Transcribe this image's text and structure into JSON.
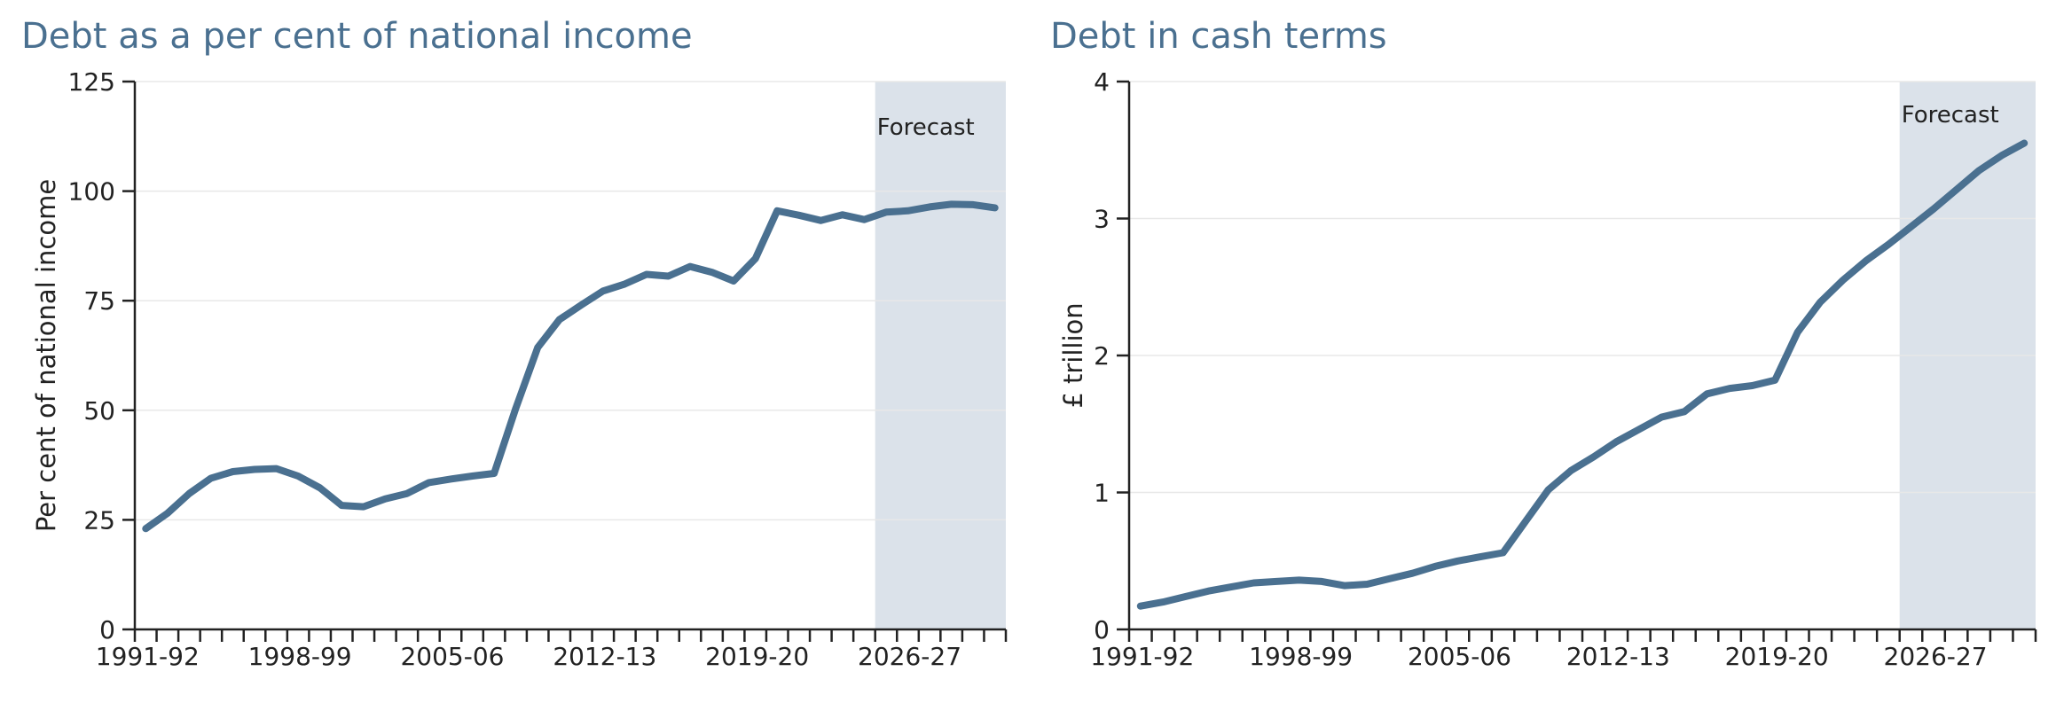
{
  "colors": {
    "series": "#4a7090",
    "title": "#4a7090",
    "forecast_shade": "#dbe2ea",
    "axis": "#222222",
    "grid": "#e8e8e8"
  },
  "chart_data": [
    {
      "type": "line",
      "title": "Debt as a per cent of national income",
      "xlabel": "",
      "ylabel": "Per cent of national income",
      "ylim": [
        0,
        125
      ],
      "yticks": [
        0,
        25,
        50,
        75,
        100,
        125
      ],
      "xticklabels": [
        "1991-92",
        "1998-99",
        "2005-06",
        "2012-13",
        "2019-20",
        "2026-27"
      ],
      "xlabel_every": 7,
      "grid": true,
      "forecast_label": "Forecast",
      "forecast_start": "2025-26",
      "categories": [
        "1991-92",
        "1992-93",
        "1993-94",
        "1994-95",
        "1995-96",
        "1996-97",
        "1997-98",
        "1998-99",
        "1999-00",
        "2000-01",
        "2001-02",
        "2002-03",
        "2003-04",
        "2004-05",
        "2005-06",
        "2006-07",
        "2007-08",
        "2008-09",
        "2009-10",
        "2010-11",
        "2011-12",
        "2012-13",
        "2013-14",
        "2014-15",
        "2015-16",
        "2016-17",
        "2017-18",
        "2018-19",
        "2019-20",
        "2020-21",
        "2021-22",
        "2022-23",
        "2023-24",
        "2024-25",
        "2025-26",
        "2026-27",
        "2027-28",
        "2028-29",
        "2029-30",
        "2030-31"
      ],
      "series": [
        {
          "values": [
            23.0,
            26.5,
            31.0,
            34.5,
            36.0,
            36.5,
            36.7,
            35.0,
            32.3,
            28.3,
            28.0,
            29.8,
            31.0,
            33.5,
            34.3,
            35.0,
            35.6,
            50.5,
            64.3,
            70.7,
            74.0,
            77.2,
            78.8,
            81.0,
            80.6,
            82.8,
            81.5,
            79.5,
            84.6,
            95.5,
            94.5,
            93.3,
            94.6,
            93.5,
            95.2,
            95.5,
            96.4,
            97.0,
            96.9,
            96.2
          ]
        }
      ]
    },
    {
      "type": "line",
      "title": "Debt in cash terms",
      "xlabel": "",
      "ylabel": "£ trillion",
      "ylim": [
        0,
        4
      ],
      "yticks": [
        0,
        1,
        2,
        3,
        4
      ],
      "xticklabels": [
        "1991-92",
        "1998-99",
        "2005-06",
        "2012-13",
        "2019-20",
        "2026-27"
      ],
      "xlabel_every": 7,
      "grid": true,
      "forecast_label": "Forecast",
      "forecast_start": "2025-26",
      "categories": [
        "1991-92",
        "1992-93",
        "1993-94",
        "1994-95",
        "1995-96",
        "1996-97",
        "1997-98",
        "1998-99",
        "1999-00",
        "2000-01",
        "2001-02",
        "2002-03",
        "2003-04",
        "2004-05",
        "2005-06",
        "2006-07",
        "2007-08",
        "2008-09",
        "2009-10",
        "2010-11",
        "2011-12",
        "2012-13",
        "2013-14",
        "2014-15",
        "2015-16",
        "2016-17",
        "2017-18",
        "2018-19",
        "2019-20",
        "2020-21",
        "2021-22",
        "2022-23",
        "2023-24",
        "2024-25",
        "2025-26",
        "2026-27",
        "2027-28",
        "2028-29",
        "2029-30",
        "2030-31"
      ],
      "series": [
        {
          "values": [
            0.17,
            0.2,
            0.24,
            0.28,
            0.31,
            0.34,
            0.35,
            0.36,
            0.35,
            0.32,
            0.33,
            0.37,
            0.41,
            0.46,
            0.5,
            0.53,
            0.56,
            0.79,
            1.02,
            1.16,
            1.26,
            1.37,
            1.46,
            1.55,
            1.59,
            1.72,
            1.76,
            1.78,
            1.82,
            2.17,
            2.39,
            2.55,
            2.69,
            2.81,
            2.94,
            3.07,
            3.21,
            3.35,
            3.46,
            3.55
          ]
        }
      ]
    }
  ]
}
